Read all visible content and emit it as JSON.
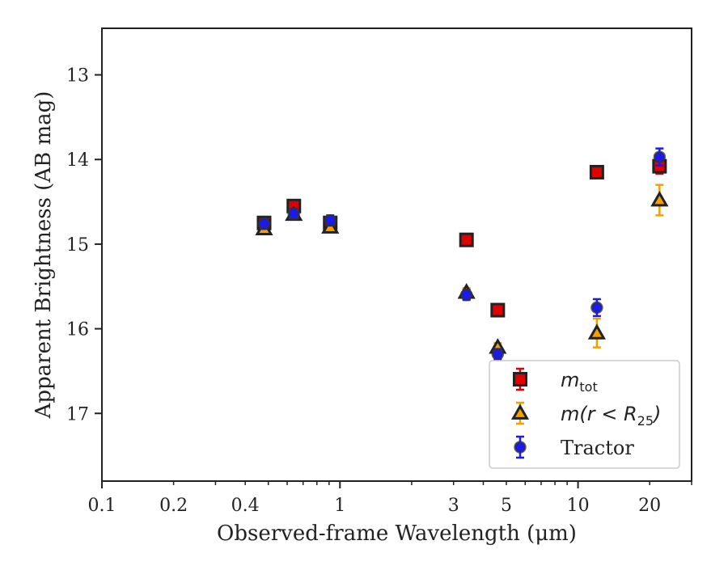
{
  "chart_data": {
    "type": "scatter",
    "title": "",
    "xlabel": "Observed-frame Wavelength (μm)",
    "ylabel": "Apparent Brightness (AB mag)",
    "xscale": "log",
    "yscale": "linear",
    "y_inverted": true,
    "xlim": [
      0.1,
      30
    ],
    "ylim": [
      17.8,
      12.45
    ],
    "xticks": [
      0.1,
      0.2,
      0.4,
      1,
      3,
      5,
      10,
      20
    ],
    "xtick_labels": [
      "0.1",
      "0.2",
      "0.4",
      "1",
      "3",
      "5",
      "10",
      "20"
    ],
    "yticks": [
      13,
      14,
      15,
      16,
      17
    ],
    "ytick_labels": [
      "13",
      "14",
      "15",
      "16",
      "17"
    ],
    "grid": false,
    "legend_position": "lower-right",
    "series": [
      {
        "name": "m_tot",
        "legend_label": {
          "main": "m",
          "sub": "tot"
        },
        "marker": "square",
        "color": "#e00000",
        "errcolor": "#e00000",
        "x": [
          0.48,
          0.64,
          0.91,
          3.4,
          4.6,
          12.0,
          22.0
        ],
        "y": [
          14.75,
          14.55,
          14.75,
          14.95,
          15.78,
          14.15,
          14.08
        ],
        "yerr": [
          0.06,
          0.06,
          0.06,
          0.06,
          0.06,
          0.07,
          0.09
        ]
      },
      {
        "name": "m(r < R25)",
        "legend_label": {
          "main": "m(r < R",
          "sub": "25",
          "tail": ")"
        },
        "marker": "triangle",
        "color": "#f5a000",
        "errcolor": "#f5a000",
        "x": [
          0.48,
          0.64,
          0.91,
          3.4,
          4.6,
          12.0,
          22.0
        ],
        "y": [
          14.82,
          14.65,
          14.8,
          15.57,
          16.22,
          16.05,
          14.48
        ],
        "yerr": [
          0.05,
          0.05,
          0.05,
          0.05,
          0.05,
          0.17,
          0.18
        ]
      },
      {
        "name": "Tractor",
        "legend_label": {
          "main": "Tractor"
        },
        "marker": "circle",
        "color": "#1a1aee",
        "errcolor": "#1a1aee",
        "x": [
          0.48,
          0.64,
          0.91,
          3.4,
          4.6,
          12.0,
          22.0
        ],
        "y": [
          14.76,
          14.64,
          14.72,
          15.6,
          16.3,
          15.75,
          13.97
        ],
        "yerr": [
          0.06,
          0.06,
          0.06,
          0.06,
          0.06,
          0.1,
          0.1
        ]
      }
    ]
  }
}
